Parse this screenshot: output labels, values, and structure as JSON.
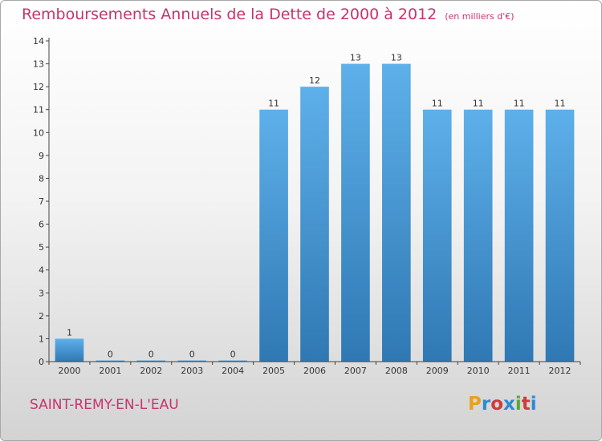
{
  "title": "Remboursements Annuels de la Dette de 2000 à 2012",
  "subtitle": "(en milliers d'€)",
  "commune": "SAINT-REMY-EN-L'EAU",
  "logo": {
    "letters": [
      "P",
      "r",
      "o",
      "x",
      "i",
      "t",
      "i"
    ],
    "colors": [
      "#e8a020",
      "#2a8ad0",
      "#d03a3a",
      "#2a8ad0",
      "#5aa83a",
      "#d03a3a",
      "#2a8ad0"
    ]
  },
  "colors": {
    "bar_top": "#5eb0ea",
    "bar_bottom": "#2f78b4",
    "axis": "#444444"
  },
  "chart_data": {
    "type": "bar",
    "categories": [
      "2000",
      "2001",
      "2002",
      "2003",
      "2004",
      "2005",
      "2006",
      "2007",
      "2008",
      "2009",
      "2010",
      "2011",
      "2012"
    ],
    "values": [
      1,
      0,
      0,
      0,
      0,
      11,
      12,
      13,
      13,
      11,
      11,
      11,
      11
    ],
    "ylim": [
      0,
      14
    ],
    "yticks": [
      0,
      1,
      2,
      3,
      4,
      5,
      6,
      7,
      8,
      9,
      10,
      11,
      12,
      13,
      14
    ],
    "grid": false
  }
}
